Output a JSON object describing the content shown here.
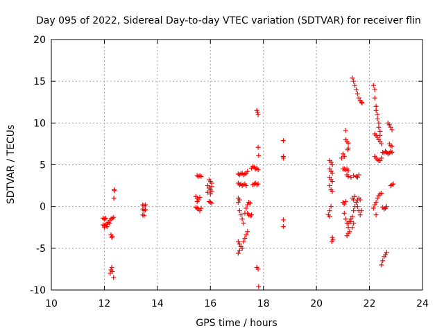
{
  "chart_data": {
    "type": "scatter",
    "title": "Day 095 of 2022, Sidereal Day-to-day VTEC variation (SDTVAR) for receiver flin",
    "xlabel": "GPS time / hours",
    "ylabel": "SDTVAR / TECUs",
    "xlim": [
      10,
      24
    ],
    "ylim": [
      -10,
      20
    ],
    "xticks": [
      10,
      12,
      14,
      16,
      18,
      20,
      22,
      24
    ],
    "yticks": [
      -10,
      -5,
      0,
      5,
      10,
      15,
      20
    ],
    "xtick_labels": [
      "10",
      "12",
      "14",
      "16",
      "18",
      "20",
      "22",
      "24"
    ],
    "ytick_labels": [
      "-10",
      "-5",
      "0",
      "5",
      "10",
      "15",
      "20"
    ],
    "grid": true,
    "marker": "+",
    "color": "#ff0000",
    "series": [
      {
        "name": "SDTVAR",
        "points": [
          [
            11.95,
            -1.4
          ],
          [
            12.0,
            -1.5
          ],
          [
            12.05,
            -1.4
          ],
          [
            11.95,
            -2.2
          ],
          [
            12.0,
            -2.3
          ],
          [
            12.05,
            -2.2
          ],
          [
            12.1,
            -2.1
          ],
          [
            12.15,
            -1.9
          ],
          [
            12.2,
            -1.7
          ],
          [
            12.25,
            -1.5
          ],
          [
            12.3,
            -1.4
          ],
          [
            12.35,
            -1.3
          ],
          [
            12.0,
            -2.5
          ],
          [
            12.1,
            -2.4
          ],
          [
            12.2,
            -2.0
          ],
          [
            12.25,
            -3.4
          ],
          [
            12.3,
            -3.6
          ],
          [
            12.28,
            -3.7
          ],
          [
            12.25,
            -7.6
          ],
          [
            12.28,
            -7.3
          ],
          [
            12.22,
            -8.0
          ],
          [
            12.3,
            -7.8
          ],
          [
            12.35,
            -8.5
          ],
          [
            12.37,
            2.0
          ],
          [
            12.38,
            1.9
          ],
          [
            12.36,
            1.0
          ],
          [
            13.45,
            0.2
          ],
          [
            13.5,
            0.1
          ],
          [
            13.55,
            0.2
          ],
          [
            13.45,
            -0.3
          ],
          [
            13.5,
            -0.5
          ],
          [
            13.55,
            -0.4
          ],
          [
            13.45,
            -1.0
          ],
          [
            13.5,
            -1.1
          ],
          [
            15.5,
            3.7
          ],
          [
            15.55,
            3.6
          ],
          [
            15.6,
            3.7
          ],
          [
            15.65,
            3.6
          ],
          [
            15.45,
            1.2
          ],
          [
            15.5,
            1.0
          ],
          [
            15.55,
            0.8
          ],
          [
            15.6,
            1.1
          ],
          [
            15.5,
            0.6
          ],
          [
            15.45,
            -0.1
          ],
          [
            15.5,
            -0.2
          ],
          [
            15.55,
            -0.3
          ],
          [
            15.6,
            -0.5
          ],
          [
            15.65,
            -0.2
          ],
          [
            15.95,
            3.2
          ],
          [
            16.0,
            3.0
          ],
          [
            16.05,
            2.8
          ],
          [
            15.9,
            2.5
          ],
          [
            15.95,
            2.2
          ],
          [
            16.0,
            2.0
          ],
          [
            16.05,
            1.8
          ],
          [
            15.9,
            1.7
          ],
          [
            16.0,
            1.5
          ],
          [
            16.05,
            2.4
          ],
          [
            15.95,
            0.6
          ],
          [
            16.0,
            0.5
          ],
          [
            16.05,
            0.4
          ],
          [
            17.05,
            3.9
          ],
          [
            17.1,
            3.8
          ],
          [
            17.15,
            3.9
          ],
          [
            17.2,
            4.0
          ],
          [
            17.25,
            3.8
          ],
          [
            17.3,
            3.9
          ],
          [
            17.35,
            4.0
          ],
          [
            17.4,
            4.2
          ],
          [
            17.05,
            2.8
          ],
          [
            17.1,
            2.6
          ],
          [
            17.15,
            2.7
          ],
          [
            17.2,
            2.5
          ],
          [
            17.25,
            2.6
          ],
          [
            17.3,
            2.7
          ],
          [
            17.35,
            2.5
          ],
          [
            17.05,
            1.0
          ],
          [
            17.1,
            0.8
          ],
          [
            17.05,
            0.5
          ],
          [
            17.1,
            -0.5
          ],
          [
            17.15,
            -1.0
          ],
          [
            17.2,
            -1.5
          ],
          [
            17.25,
            -2.0
          ],
          [
            17.3,
            -0.8
          ],
          [
            17.35,
            -0.2
          ],
          [
            17.4,
            0.2
          ],
          [
            17.45,
            0.5
          ],
          [
            17.5,
            0.4
          ],
          [
            17.05,
            -4.2
          ],
          [
            17.1,
            -4.5
          ],
          [
            17.15,
            -4.8
          ],
          [
            17.2,
            -5.0
          ],
          [
            17.25,
            -4.2
          ],
          [
            17.3,
            -3.8
          ],
          [
            17.35,
            -3.4
          ],
          [
            17.4,
            -3.0
          ],
          [
            17.1,
            -5.3
          ],
          [
            17.05,
            -5.6
          ],
          [
            17.4,
            -0.8
          ],
          [
            17.45,
            -1.0
          ],
          [
            17.5,
            -1.1
          ],
          [
            17.55,
            -1.0
          ],
          [
            17.55,
            4.6
          ],
          [
            17.6,
            4.8
          ],
          [
            17.65,
            4.7
          ],
          [
            17.7,
            4.5
          ],
          [
            17.75,
            4.6
          ],
          [
            17.8,
            4.4
          ],
          [
            17.6,
            2.6
          ],
          [
            17.65,
            2.7
          ],
          [
            17.7,
            2.8
          ],
          [
            17.75,
            2.6
          ],
          [
            17.8,
            2.7
          ],
          [
            17.75,
            11.5
          ],
          [
            17.78,
            11.3
          ],
          [
            17.8,
            11.0
          ],
          [
            17.8,
            7.1
          ],
          [
            17.82,
            6.1
          ],
          [
            17.75,
            -7.3
          ],
          [
            17.8,
            -7.5
          ],
          [
            17.82,
            -9.6
          ],
          [
            18.75,
            7.9
          ],
          [
            18.75,
            6.0
          ],
          [
            18.75,
            5.8
          ],
          [
            18.75,
            -1.6
          ],
          [
            18.75,
            -2.4
          ],
          [
            20.5,
            5.5
          ],
          [
            20.55,
            5.3
          ],
          [
            20.6,
            5.0
          ],
          [
            20.5,
            4.5
          ],
          [
            20.55,
            4.2
          ],
          [
            20.6,
            4.0
          ],
          [
            20.5,
            3.5
          ],
          [
            20.55,
            3.2
          ],
          [
            20.6,
            3.0
          ],
          [
            20.5,
            2.5
          ],
          [
            20.55,
            2.0
          ],
          [
            20.6,
            1.8
          ],
          [
            20.55,
            0.0
          ],
          [
            20.5,
            -0.5
          ],
          [
            20.45,
            -1.0
          ],
          [
            20.5,
            -1.2
          ],
          [
            20.6,
            -3.7
          ],
          [
            20.62,
            -4.0
          ],
          [
            20.58,
            -4.2
          ],
          [
            21.0,
            6.3
          ],
          [
            21.05,
            6.0
          ],
          [
            20.95,
            5.8
          ],
          [
            21.05,
            4.5
          ],
          [
            21.1,
            4.4
          ],
          [
            21.15,
            4.5
          ],
          [
            21.2,
            4.3
          ],
          [
            21.0,
            4.5
          ],
          [
            21.1,
            8.0
          ],
          [
            21.15,
            7.8
          ],
          [
            21.2,
            7.6
          ],
          [
            21.2,
            7.0
          ],
          [
            21.18,
            6.8
          ],
          [
            21.1,
            9.1
          ],
          [
            21.15,
            3.8
          ],
          [
            21.2,
            3.6
          ],
          [
            21.3,
            3.5
          ],
          [
            21.4,
            3.7
          ],
          [
            21.5,
            3.6
          ],
          [
            21.6,
            3.8
          ],
          [
            21.55,
            3.5
          ],
          [
            21.0,
            0.5
          ],
          [
            21.05,
            0.3
          ],
          [
            21.1,
            0.6
          ],
          [
            21.05,
            -0.8
          ],
          [
            21.1,
            -1.5
          ],
          [
            21.15,
            -2.0
          ],
          [
            21.2,
            -2.5
          ],
          [
            21.25,
            -3.0
          ],
          [
            21.15,
            -3.5
          ],
          [
            21.2,
            -3.2
          ],
          [
            21.3,
            -1.8
          ],
          [
            21.35,
            -1.2
          ],
          [
            21.4,
            -0.5
          ],
          [
            21.45,
            0.0
          ],
          [
            21.5,
            0.5
          ],
          [
            21.55,
            0.8
          ],
          [
            21.6,
            1.0
          ],
          [
            21.65,
            0.8
          ],
          [
            21.2,
            -2.0
          ],
          [
            21.25,
            -1.8
          ],
          [
            21.3,
            -1.5
          ],
          [
            21.35,
            -2.5
          ],
          [
            21.4,
            -2.0
          ],
          [
            21.35,
            15.4
          ],
          [
            21.4,
            15.0
          ],
          [
            21.45,
            14.5
          ],
          [
            21.5,
            14.0
          ],
          [
            21.55,
            13.5
          ],
          [
            21.6,
            13.0
          ],
          [
            21.65,
            12.7
          ],
          [
            21.7,
            12.5
          ],
          [
            21.72,
            12.4
          ],
          [
            21.35,
            1.0
          ],
          [
            21.4,
            0.8
          ],
          [
            21.45,
            1.2
          ],
          [
            21.5,
            0.5
          ],
          [
            21.55,
            0.0
          ],
          [
            21.6,
            -0.5
          ],
          [
            21.65,
            -1.0
          ],
          [
            21.7,
            -0.5
          ],
          [
            22.15,
            14.5
          ],
          [
            22.2,
            14.0
          ],
          [
            22.2,
            13.0
          ],
          [
            22.25,
            12.0
          ],
          [
            22.25,
            11.5
          ],
          [
            22.3,
            11.0
          ],
          [
            22.3,
            10.5
          ],
          [
            22.35,
            10.0
          ],
          [
            22.35,
            9.5
          ],
          [
            22.4,
            9.0
          ],
          [
            22.4,
            8.5
          ],
          [
            22.2,
            8.7
          ],
          [
            22.25,
            8.5
          ],
          [
            22.3,
            8.3
          ],
          [
            22.35,
            8.0
          ],
          [
            22.4,
            7.8
          ],
          [
            22.45,
            7.5
          ],
          [
            22.2,
            6.0
          ],
          [
            22.25,
            5.8
          ],
          [
            22.3,
            5.6
          ],
          [
            22.35,
            5.5
          ],
          [
            22.4,
            5.5
          ],
          [
            22.45,
            5.8
          ],
          [
            22.5,
            6.5
          ],
          [
            22.55,
            6.4
          ],
          [
            22.6,
            6.6
          ],
          [
            22.65,
            6.5
          ],
          [
            22.7,
            6.3
          ],
          [
            22.75,
            6.4
          ],
          [
            22.8,
            6.6
          ],
          [
            22.85,
            6.5
          ],
          [
            22.75,
            7.5
          ],
          [
            22.8,
            7.3
          ],
          [
            22.85,
            7.2
          ],
          [
            22.7,
            10.0
          ],
          [
            22.75,
            9.8
          ],
          [
            22.8,
            9.5
          ],
          [
            22.85,
            9.2
          ],
          [
            22.15,
            -0.2
          ],
          [
            22.2,
            0.2
          ],
          [
            22.25,
            0.5
          ],
          [
            22.3,
            1.0
          ],
          [
            22.35,
            1.3
          ],
          [
            22.4,
            1.5
          ],
          [
            22.45,
            1.6
          ],
          [
            22.5,
            -0.1
          ],
          [
            22.55,
            -0.3
          ],
          [
            22.6,
            -0.2
          ],
          [
            22.65,
            0.0
          ],
          [
            22.45,
            -7.0
          ],
          [
            22.5,
            -6.5
          ],
          [
            22.55,
            -6.0
          ],
          [
            22.6,
            -5.8
          ],
          [
            22.65,
            -5.5
          ],
          [
            22.8,
            2.5
          ],
          [
            22.85,
            2.6
          ],
          [
            22.9,
            2.7
          ],
          [
            22.25,
            -1.0
          ]
        ]
      }
    ]
  }
}
